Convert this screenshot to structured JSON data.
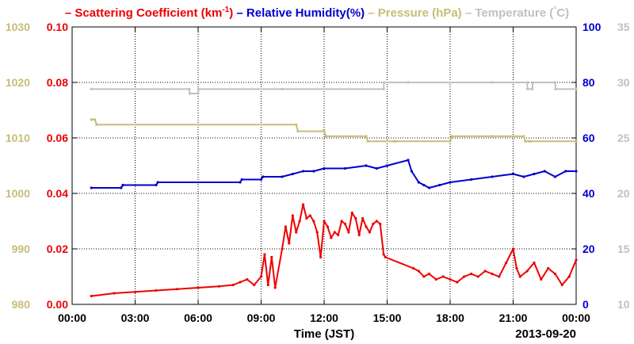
{
  "chart_data": {
    "type": "line",
    "legend": [
      {
        "prefix": "– ",
        "text": "Scattering Coefficient (km",
        "sup": "-1",
        "suffix": ")",
        "color": "#ee0000"
      },
      {
        "prefix": "– ",
        "text": "Relative Humidity(%)",
        "sup": "",
        "suffix": "",
        "color": "#0000cc"
      },
      {
        "prefix": "– ",
        "text": "Pressure (hPa)",
        "sup": "",
        "suffix": "",
        "color": "#c8bc78"
      },
      {
        "prefix": "– ",
        "text": "Temperature (",
        "sup": "°",
        "suffix": "C)",
        "color": "#c0c0c0"
      }
    ],
    "xlabel": "Time (JST)",
    "date_label": "2013-09-20",
    "x_ticks": [
      "00:00",
      "03:00",
      "06:00",
      "09:00",
      "12:00",
      "15:00",
      "18:00",
      "21:00",
      "00:00"
    ],
    "xlim": [
      "00:00",
      "24:00"
    ],
    "axes": {
      "pressure": {
        "side": "left-outer",
        "color": "#c8bc78",
        "ylim": [
          980,
          1030
        ],
        "ticks": [
          "980",
          "990",
          "1000",
          "1010",
          "1020",
          "1030"
        ]
      },
      "scattering": {
        "side": "left-inner",
        "color": "#ee0000",
        "ylim": [
          0,
          0.1
        ],
        "ticks": [
          "0.00",
          "0.02",
          "0.04",
          "0.06",
          "0.08",
          "0.10"
        ]
      },
      "humidity": {
        "side": "right-inner",
        "color": "#0000cc",
        "ylim": [
          0,
          100
        ],
        "ticks": [
          "0",
          "20",
          "40",
          "60",
          "80",
          "100"
        ]
      },
      "temperature": {
        "side": "right-outer",
        "color": "#c0c0c0",
        "ylim": [
          10,
          35
        ],
        "ticks": [
          "10",
          "15",
          "20",
          "25",
          "30",
          "35"
        ]
      }
    },
    "grid": true,
    "series": [
      {
        "name": "Temperature",
        "axis": "temperature",
        "color": "#c0c0c0",
        "x": [
          "00:55",
          "05:35",
          "05:36",
          "06:00",
          "06:01",
          "10:00",
          "14:50",
          "14:51",
          "16:00",
          "20:00",
          "21:40",
          "21:41",
          "21:55",
          "21:56",
          "23:00",
          "23:01",
          "24:00"
        ],
        "y": [
          29.4,
          29.4,
          29.0,
          29.0,
          29.4,
          29.4,
          29.4,
          30.0,
          30.0,
          30.0,
          30.0,
          29.4,
          29.4,
          30.0,
          30.0,
          29.4,
          29.4
        ]
      },
      {
        "name": "Pressure",
        "axis": "pressure",
        "color": "#c8bc78",
        "x": [
          "00:55",
          "01:05",
          "01:10",
          "10:40",
          "10:45",
          "12:00",
          "12:05",
          "14:00",
          "14:05",
          "15:20",
          "15:25",
          "18:00",
          "18:05",
          "20:00",
          "21:30",
          "21:35",
          "21:45",
          "21:50",
          "24:00"
        ],
        "y": [
          1013.3,
          1013.3,
          1012.4,
          1012.4,
          1011.2,
          1011.2,
          1010.3,
          1010.3,
          1009.4,
          1009.4,
          1009.4,
          1009.4,
          1010.3,
          1010.3,
          1010.3,
          1009.4,
          1009.4,
          1009.4,
          1009.4
        ]
      },
      {
        "name": "Relative Humidity",
        "axis": "humidity",
        "color": "#0000cc",
        "x": [
          "00:55",
          "02:20",
          "02:25",
          "04:00",
          "04:05",
          "08:00",
          "08:05",
          "09:00",
          "09:05",
          "10:00",
          "10:30",
          "11:00",
          "11:30",
          "12:00",
          "13:00",
          "14:00",
          "14:30",
          "15:00",
          "16:00",
          "16:10",
          "16:30",
          "16:45",
          "17:00",
          "17:30",
          "18:00",
          "19:00",
          "20:00",
          "21:00",
          "21:30",
          "22:00",
          "22:30",
          "23:00",
          "23:30",
          "24:00"
        ],
        "y": [
          42,
          42,
          43,
          43,
          44,
          44,
          45,
          45,
          46,
          46,
          47,
          48,
          48,
          49,
          49,
          50,
          49,
          50,
          52,
          48,
          44,
          43,
          42,
          43,
          44,
          45,
          46,
          47,
          46,
          47,
          48,
          46,
          48,
          48
        ]
      },
      {
        "name": "Scattering Coefficient",
        "axis": "scattering",
        "color": "#ee0000",
        "x": [
          "00:55",
          "02:00",
          "03:00",
          "04:00",
          "05:00",
          "06:00",
          "07:00",
          "07:40",
          "08:00",
          "08:20",
          "08:40",
          "09:00",
          "09:10",
          "09:20",
          "09:30",
          "09:40",
          "10:00",
          "10:10",
          "10:20",
          "10:30",
          "10:40",
          "10:50",
          "11:00",
          "11:10",
          "11:20",
          "11:30",
          "11:40",
          "11:50",
          "12:00",
          "12:10",
          "12:20",
          "12:30",
          "12:40",
          "12:50",
          "13:00",
          "13:10",
          "13:20",
          "13:30",
          "13:40",
          "13:50",
          "14:00",
          "14:10",
          "14:20",
          "14:30",
          "14:40",
          "14:50",
          "14:55",
          "16:15",
          "16:30",
          "16:45",
          "17:00",
          "17:20",
          "17:40",
          "18:00",
          "18:20",
          "18:40",
          "19:00",
          "19:20",
          "19:40",
          "20:00",
          "20:20",
          "20:40",
          "21:00",
          "21:10",
          "21:20",
          "21:40",
          "22:00",
          "22:20",
          "22:40",
          "23:00",
          "23:20",
          "23:40",
          "24:00"
        ],
        "y": [
          0.003,
          0.004,
          0.0045,
          0.005,
          0.0055,
          0.006,
          0.0065,
          0.007,
          0.008,
          0.009,
          0.007,
          0.01,
          0.018,
          0.007,
          0.017,
          0.006,
          0.02,
          0.028,
          0.022,
          0.032,
          0.026,
          0.03,
          0.036,
          0.031,
          0.032,
          0.03,
          0.026,
          0.017,
          0.03,
          0.028,
          0.024,
          0.026,
          0.025,
          0.03,
          0.029,
          0.026,
          0.033,
          0.031,
          0.025,
          0.031,
          0.028,
          0.026,
          0.029,
          0.03,
          0.029,
          0.018,
          0.017,
          0.013,
          0.012,
          0.01,
          0.011,
          0.009,
          0.01,
          0.009,
          0.008,
          0.01,
          0.011,
          0.01,
          0.012,
          0.011,
          0.01,
          0.015,
          0.02,
          0.013,
          0.01,
          0.012,
          0.015,
          0.009,
          0.013,
          0.011,
          0.007,
          0.01,
          0.016
        ]
      }
    ]
  }
}
